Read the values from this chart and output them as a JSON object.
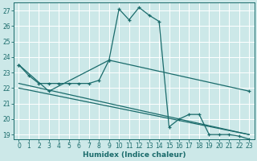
{
  "xlabel": "Humidex (Indice chaleur)",
  "background_color": "#cce8e8",
  "grid_color": "#ffffff",
  "line_color": "#1a6b6b",
  "xlim": [
    -0.5,
    23.5
  ],
  "ylim": [
    18.7,
    27.5
  ],
  "yticks": [
    19,
    20,
    21,
    22,
    23,
    24,
    25,
    26,
    27
  ],
  "xticks": [
    0,
    1,
    2,
    3,
    4,
    5,
    6,
    7,
    8,
    9,
    10,
    11,
    12,
    13,
    14,
    15,
    16,
    17,
    18,
    19,
    20,
    21,
    22,
    23
  ],
  "series": [
    {
      "x": [
        0,
        1,
        2,
        3,
        4,
        5,
        6,
        7,
        8,
        9,
        10,
        11,
        12,
        13,
        14,
        15,
        16,
        17,
        18,
        19,
        20,
        21,
        22,
        23
      ],
      "y": [
        23.5,
        22.8,
        22.3,
        22.3,
        22.3,
        22.3,
        22.3,
        22.3,
        22.5,
        23.8,
        27.1,
        26.4,
        27.2,
        26.7,
        26.3,
        19.5,
        20.0,
        20.3,
        20.3,
        19.0,
        19.0,
        19.0,
        18.9,
        18.7
      ],
      "marker": true
    },
    {
      "x": [
        0,
        23
      ],
      "y": [
        22.3,
        19.0
      ],
      "marker": false
    },
    {
      "x": [
        0,
        3,
        9,
        23
      ],
      "y": [
        23.5,
        21.8,
        23.8,
        21.8
      ],
      "marker": true
    },
    {
      "x": [
        0,
        23
      ],
      "y": [
        22.0,
        19.0
      ],
      "marker": false
    }
  ]
}
